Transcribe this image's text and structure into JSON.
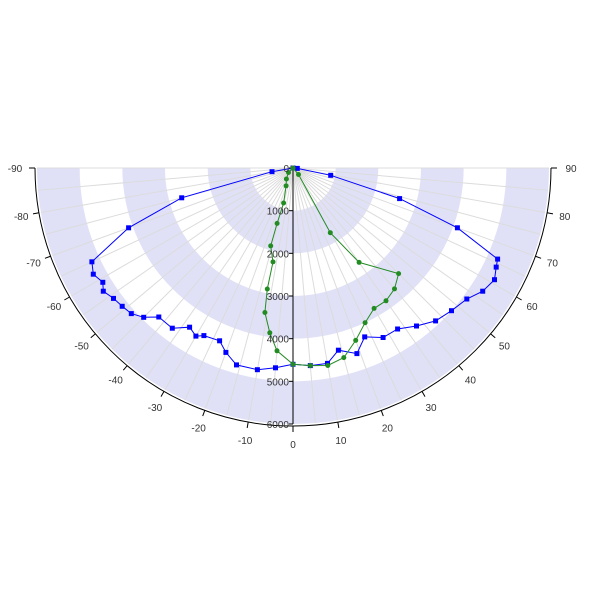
{
  "chart_data": {
    "type": "polar-line",
    "title": "",
    "angle_range": [
      -90,
      90
    ],
    "angle_ticks": [
      -90,
      -80,
      -70,
      -60,
      -50,
      -40,
      -30,
      -20,
      -10,
      0,
      10,
      20,
      30,
      40,
      50,
      60,
      70,
      80,
      90
    ],
    "radial_range": [
      0,
      6000
    ],
    "radial_ticks": [
      0,
      1000,
      2000,
      3000,
      4000,
      5000,
      6000
    ],
    "grid": true,
    "band_color": "#e0e1f7",
    "series": [
      {
        "color": "#0000ff",
        "marker": "square",
        "points": [
          {
            "a": -90,
            "r": 0
          },
          {
            "a": -80,
            "r": 500
          },
          {
            "a": -75,
            "r": 2700
          },
          {
            "a": -70,
            "r": 4100
          },
          {
            "a": -65,
            "r": 5200
          },
          {
            "a": -62,
            "r": 5300
          },
          {
            "a": -59,
            "r": 5200
          },
          {
            "a": -57,
            "r": 5300
          },
          {
            "a": -54,
            "r": 5200
          },
          {
            "a": -51,
            "r": 5150
          },
          {
            "a": -48,
            "r": 5100
          },
          {
            "a": -45,
            "r": 4950
          },
          {
            "a": -42,
            "r": 4700
          },
          {
            "a": -37,
            "r": 4700
          },
          {
            "a": -33,
            "r": 4450
          },
          {
            "a": -30,
            "r": 4550
          },
          {
            "a": -28,
            "r": 4450
          },
          {
            "a": -23,
            "r": 4400
          },
          {
            "a": -20,
            "r": 4600
          },
          {
            "a": -16,
            "r": 4800
          },
          {
            "a": -10,
            "r": 4800
          },
          {
            "a": -5,
            "r": 4700
          },
          {
            "a": 0,
            "r": 4600
          },
          {
            "a": 5,
            "r": 4650
          },
          {
            "a": 10,
            "r": 4650
          },
          {
            "a": 14,
            "r": 4400
          },
          {
            "a": 19,
            "r": 4600
          },
          {
            "a": 23,
            "r": 4300
          },
          {
            "a": 28,
            "r": 4500
          },
          {
            "a": 33,
            "r": 4500
          },
          {
            "a": 38,
            "r": 4700
          },
          {
            "a": 43,
            "r": 4900
          },
          {
            "a": 48,
            "r": 5000
          },
          {
            "a": 53,
            "r": 5100
          },
          {
            "a": 57,
            "r": 5300
          },
          {
            "a": 61,
            "r": 5400
          },
          {
            "a": 64,
            "r": 5300
          },
          {
            "a": 66,
            "r": 5250
          },
          {
            "a": 70,
            "r": 4100
          },
          {
            "a": 74,
            "r": 2600
          },
          {
            "a": 79,
            "r": 900
          },
          {
            "a": 85,
            "r": 100
          },
          {
            "a": 90,
            "r": 0
          }
        ]
      },
      {
        "color": "#228b22",
        "marker": "circle",
        "points": [
          {
            "a": -90,
            "r": 0
          },
          {
            "a": -45,
            "r": 150
          },
          {
            "a": -31,
            "r": 300
          },
          {
            "a": -21,
            "r": 450
          },
          {
            "a": -15,
            "r": 850
          },
          {
            "a": -16,
            "r": 1350
          },
          {
            "a": -16,
            "r": 1900
          },
          {
            "a": -12,
            "r": 2250
          },
          {
            "a": -12,
            "r": 2900
          },
          {
            "a": -11,
            "r": 3450
          },
          {
            "a": -8,
            "r": 3900
          },
          {
            "a": -5,
            "r": 4300
          },
          {
            "a": 0,
            "r": 4600
          },
          {
            "a": 5,
            "r": 4650
          },
          {
            "a": 10,
            "r": 4700
          },
          {
            "a": 15,
            "r": 4600
          },
          {
            "a": 20,
            "r": 4300
          },
          {
            "a": 25,
            "r": 4000
          },
          {
            "a": 30,
            "r": 3800
          },
          {
            "a": 35,
            "r": 3800
          },
          {
            "a": 40,
            "r": 3700
          },
          {
            "a": 45,
            "r": 3500
          },
          {
            "a": 35,
            "r": 2700
          },
          {
            "a": 30,
            "r": 1750
          },
          {
            "a": 40,
            "r": 200
          },
          {
            "a": 90,
            "r": 0
          }
        ]
      }
    ]
  }
}
